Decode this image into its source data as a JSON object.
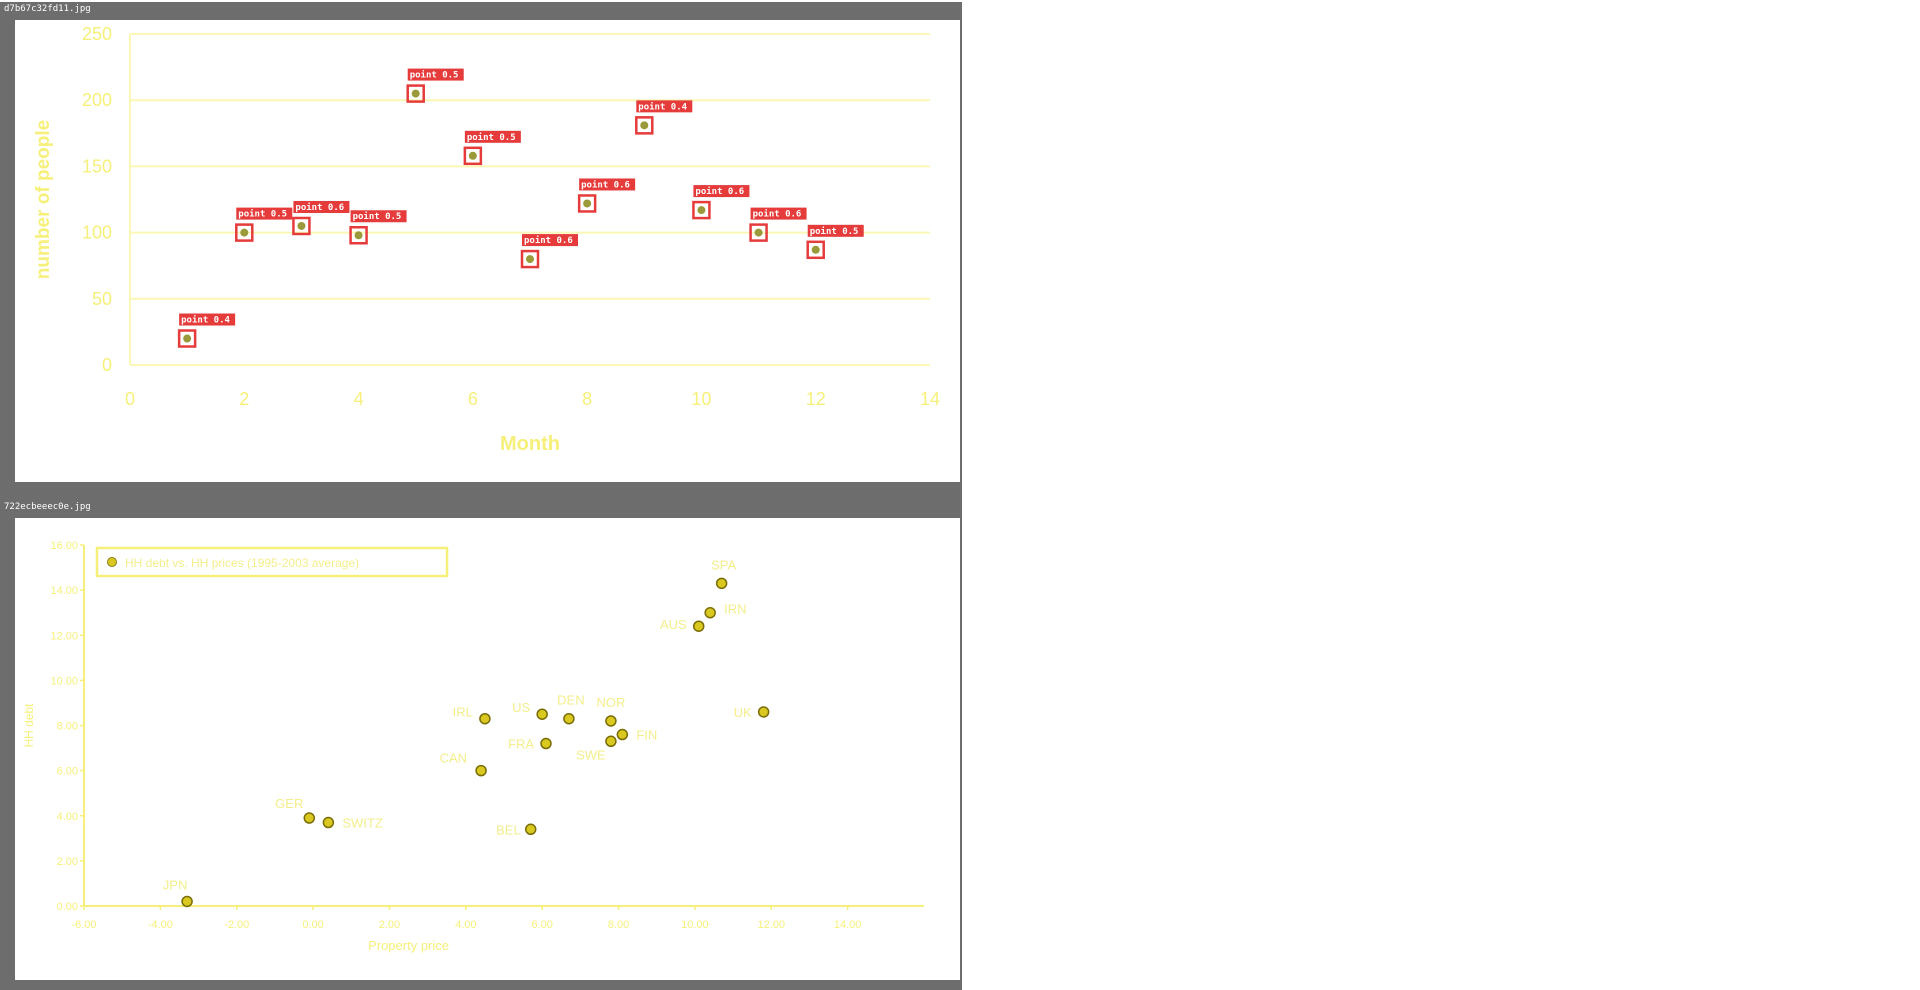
{
  "panels": [
    {
      "filename": "d7b67c32fd11.jpg",
      "chart_data": {
        "type": "scatter",
        "xlabel": "Month",
        "ylabel": "number of people",
        "xlim": [
          0,
          14
        ],
        "ylim": [
          0,
          250
        ],
        "xticks": [
          "0",
          "2",
          "4",
          "6",
          "8",
          "10",
          "12",
          "14"
        ],
        "yticks": [
          "0",
          "50",
          "100",
          "150",
          "200",
          "250"
        ],
        "grid": "horizontal",
        "colors": {
          "axis_text": "#f6f07a",
          "grid": "#fbf7b4",
          "marker": "#9a9a3a",
          "box": "#e53b3b"
        },
        "points": [
          {
            "x": 1,
            "y": 20,
            "label": "point 0.4"
          },
          {
            "x": 2,
            "y": 100,
            "label": "point 0.5"
          },
          {
            "x": 3,
            "y": 105,
            "label": "point 0.6"
          },
          {
            "x": 4,
            "y": 98,
            "label": "point 0.5"
          },
          {
            "x": 5,
            "y": 205,
            "label": "point 0.5"
          },
          {
            "x": 6,
            "y": 158,
            "label": "point 0.5"
          },
          {
            "x": 7,
            "y": 80,
            "label": "point 0.6"
          },
          {
            "x": 8,
            "y": 122,
            "label": "point 0.6"
          },
          {
            "x": 9,
            "y": 181,
            "label": "point 0.4"
          },
          {
            "x": 10,
            "y": 117,
            "label": "point 0.6"
          },
          {
            "x": 11,
            "y": 100,
            "label": "point 0.6"
          },
          {
            "x": 12,
            "y": 87,
            "label": "point 0.5"
          }
        ]
      }
    },
    {
      "filename": "722ecbeeec0e.jpg",
      "chart_data": {
        "type": "scatter",
        "xlabel": "Property price",
        "ylabel": "HH debt",
        "xlim": [
          -6,
          16
        ],
        "ylim": [
          0,
          16
        ],
        "xticks": [
          "-6.00",
          "-4.00",
          "-2.00",
          "0.00",
          "2.00",
          "4.00",
          "6.00",
          "8.00",
          "10.00",
          "12.00",
          "14.00"
        ],
        "yticks": [
          "0.00",
          "2.00",
          "4.00",
          "6.00",
          "8.00",
          "10.00",
          "12.00",
          "14.00",
          "16.00"
        ],
        "grid": "none",
        "legend": {
          "position": "top-left",
          "entry": "HH debt vs. HH prices (1995-2003 average)"
        },
        "colors": {
          "axis_text": "#f6f07a",
          "marker": "#d8c820",
          "label": "#f3ee8c"
        },
        "points": [
          {
            "x": -3.3,
            "y": 0.2,
            "label": "JPN"
          },
          {
            "x": -0.1,
            "y": 3.9,
            "label": "GER"
          },
          {
            "x": 0.4,
            "y": 3.7,
            "label": "SWITZ"
          },
          {
            "x": 4.4,
            "y": 6.0,
            "label": "CAN"
          },
          {
            "x": 4.5,
            "y": 8.3,
            "label": "IRL"
          },
          {
            "x": 5.7,
            "y": 3.4,
            "label": "BEL"
          },
          {
            "x": 6.0,
            "y": 8.5,
            "label": "US"
          },
          {
            "x": 6.1,
            "y": 7.2,
            "label": "FRA"
          },
          {
            "x": 6.7,
            "y": 8.3,
            "label": "DEN"
          },
          {
            "x": 7.8,
            "y": 8.2,
            "label": "NOR"
          },
          {
            "x": 7.8,
            "y": 7.3,
            "label": "SWE"
          },
          {
            "x": 8.1,
            "y": 7.6,
            "label": "FIN"
          },
          {
            "x": 10.1,
            "y": 12.4,
            "label": "AUS"
          },
          {
            "x": 10.4,
            "y": 13.0,
            "label": "IRN"
          },
          {
            "x": 10.7,
            "y": 14.3,
            "label": "SPA"
          },
          {
            "x": 11.8,
            "y": 8.6,
            "label": "UK"
          }
        ]
      }
    }
  ]
}
